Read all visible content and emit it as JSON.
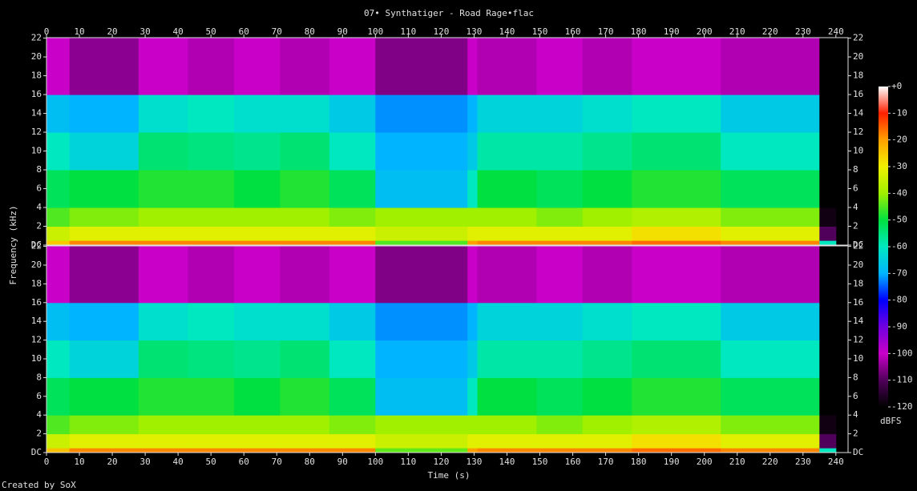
{
  "title": "07• Synthatiger - Road Rage•flac",
  "xlabel": "Time (s)",
  "ylabel": "Frequency (kHz)",
  "footer": "Created by SoX",
  "colorbar": {
    "label": "dBFS",
    "lim": [
      -120,
      0
    ],
    "ticks": [
      {
        "value": 0,
        "label": "+0"
      },
      -10,
      -20,
      -30,
      -40,
      -50,
      -60,
      -70,
      -80,
      -90,
      -100,
      -110,
      -120
    ],
    "colors": [
      "#000000",
      "#50005a",
      "#c800c8",
      "#7000e0",
      "#0000ff",
      "#00b4ff",
      "#00e8c0",
      "#00e040",
      "#a0f000",
      "#f0f000",
      "#ffa000",
      "#ff2000",
      "#ffffff"
    ]
  },
  "chart_data": [
    {
      "type": "heatmap",
      "xlim": [
        0,
        243.7
      ],
      "ylim": [
        0,
        22.05
      ],
      "xticks": [
        0,
        10,
        20,
        30,
        40,
        50,
        60,
        70,
        80,
        90,
        100,
        110,
        120,
        130,
        140,
        150,
        160,
        170,
        180,
        190,
        200,
        210,
        220,
        230,
        240
      ],
      "yticks": [
        {
          "value": 0,
          "label": "DC"
        },
        2,
        4,
        6,
        8,
        10,
        12,
        14,
        16,
        18,
        20,
        22
      ],
      "x_edges": [
        0,
        7,
        28,
        43,
        57,
        71,
        86,
        100,
        128,
        131,
        149,
        163,
        178,
        205,
        235,
        240
      ],
      "y_edges": [
        0,
        0.5,
        2,
        4,
        8,
        12,
        16,
        22.05
      ],
      "z": [
        [
          -25,
          -18,
          -18,
          -18,
          -18,
          -18,
          -18,
          -45,
          -20,
          -18,
          -18,
          -18,
          -16,
          -18,
          -60
        ],
        [
          -35,
          -32,
          -32,
          -32,
          -32,
          -32,
          -32,
          -35,
          -32,
          -32,
          -32,
          -32,
          -28,
          -32,
          -110
        ],
        [
          -45,
          -42,
          -40,
          -40,
          -40,
          -40,
          -42,
          -40,
          -40,
          -40,
          -42,
          -40,
          -38,
          -42,
          -118
        ],
        [
          -52,
          -50,
          -48,
          -48,
          -50,
          -48,
          -52,
          -68,
          -60,
          -50,
          -52,
          -50,
          -48,
          -52,
          -120
        ],
        [
          -60,
          -64,
          -54,
          -55,
          -56,
          -54,
          -60,
          -70,
          -66,
          -58,
          -58,
          -56,
          -54,
          -60,
          -120
        ],
        [
          -68,
          -70,
          -62,
          -60,
          -62,
          -62,
          -66,
          -72,
          -70,
          -64,
          -64,
          -62,
          -60,
          -66,
          -120
        ],
        [
          -100,
          -105,
          -100,
          -102,
          -100,
          -102,
          -100,
          -106,
          -100,
          -102,
          -100,
          -102,
          -100,
          -102,
          -120
        ]
      ]
    },
    {
      "type": "heatmap",
      "xlim": [
        0,
        243.7
      ],
      "ylim": [
        0,
        22.05
      ],
      "xticks": [
        0,
        10,
        20,
        30,
        40,
        50,
        60,
        70,
        80,
        90,
        100,
        110,
        120,
        130,
        140,
        150,
        160,
        170,
        180,
        190,
        200,
        210,
        220,
        230,
        240
      ],
      "yticks": [
        {
          "value": 0,
          "label": "DC"
        },
        2,
        4,
        6,
        8,
        10,
        12,
        14,
        16,
        18,
        20,
        22
      ],
      "x_edges": [
        0,
        7,
        28,
        43,
        57,
        71,
        86,
        100,
        128,
        131,
        149,
        163,
        178,
        205,
        235,
        240
      ],
      "y_edges": [
        0,
        0.5,
        2,
        4,
        8,
        12,
        16,
        22.05
      ],
      "z": [
        [
          -24,
          -18,
          -18,
          -18,
          -18,
          -18,
          -18,
          -44,
          -20,
          -18,
          -18,
          -18,
          -16,
          -18,
          -60
        ],
        [
          -35,
          -32,
          -32,
          -32,
          -32,
          -32,
          -32,
          -35,
          -32,
          -32,
          -32,
          -32,
          -28,
          -32,
          -110
        ],
        [
          -45,
          -42,
          -40,
          -40,
          -40,
          -40,
          -42,
          -40,
          -40,
          -40,
          -42,
          -40,
          -38,
          -42,
          -118
        ],
        [
          -52,
          -50,
          -48,
          -48,
          -50,
          -48,
          -52,
          -68,
          -60,
          -50,
          -52,
          -50,
          -48,
          -52,
          -120
        ],
        [
          -60,
          -64,
          -54,
          -55,
          -56,
          -54,
          -60,
          -70,
          -66,
          -58,
          -58,
          -56,
          -54,
          -60,
          -120
        ],
        [
          -68,
          -70,
          -62,
          -60,
          -62,
          -62,
          -66,
          -72,
          -70,
          -64,
          -64,
          -62,
          -60,
          -66,
          -120
        ],
        [
          -100,
          -105,
          -100,
          -102,
          -100,
          -102,
          -100,
          -106,
          -100,
          -102,
          -100,
          -102,
          -100,
          -102,
          -120
        ]
      ]
    }
  ]
}
